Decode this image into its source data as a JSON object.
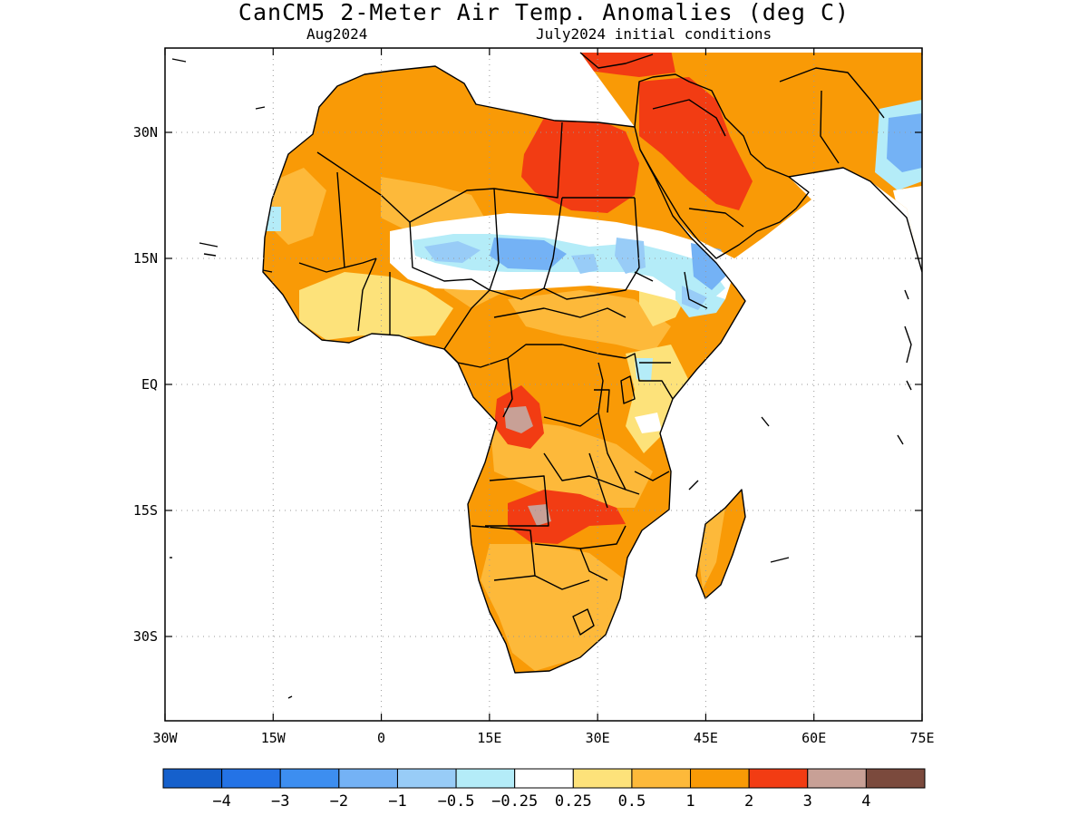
{
  "title": "CanCM5 2-Meter Air Temp. Anomalies (deg C)",
  "subtitle_left": "Aug2024",
  "subtitle_right": "July2024 initial conditions",
  "map": {
    "region": "Africa",
    "lon_range": [
      -30,
      75
    ],
    "lat_range": [
      -42,
      40
    ],
    "x_ticks": [
      {
        "lon": -30,
        "label": "30W"
      },
      {
        "lon": -15,
        "label": "15W"
      },
      {
        "lon": 0,
        "label": "0"
      },
      {
        "lon": 15,
        "label": "15E"
      },
      {
        "lon": 30,
        "label": "30E"
      },
      {
        "lon": 45,
        "label": "45E"
      },
      {
        "lon": 60,
        "label": "60E"
      },
      {
        "lon": 75,
        "label": "75E"
      }
    ],
    "y_ticks": [
      {
        "lat": 30,
        "label": "30N"
      },
      {
        "lat": 15,
        "label": "15N"
      },
      {
        "lat": 0,
        "label": "EQ"
      },
      {
        "lat": -15,
        "label": "15S"
      },
      {
        "lat": -30,
        "label": "30S"
      }
    ],
    "grid": true
  },
  "colorbar": {
    "colors": [
      "#1560cc",
      "#2473e6",
      "#3d8ef0",
      "#74b2f5",
      "#98ccf7",
      "#b4ecf8",
      "#ffffff",
      "#fde27a",
      "#fdb93a",
      "#f99a06",
      "#f23c13",
      "#c8a096",
      "#7b4a3d"
    ],
    "labels": [
      "-4",
      "-3",
      "-2",
      "-1",
      "-0.5",
      "-0.25",
      "0.25",
      "0.5",
      "1",
      "2",
      "3",
      "4"
    ]
  }
}
